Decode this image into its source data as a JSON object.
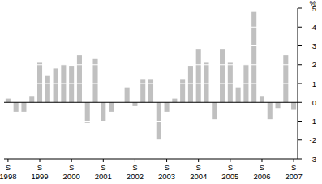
{
  "chart_data": {
    "type": "bar",
    "y_label": "%",
    "categories": [
      "S 1998",
      null,
      null,
      null,
      "S 1999",
      null,
      null,
      null,
      "S 2000",
      null,
      null,
      null,
      "S 2001",
      null,
      null,
      null,
      "S 2002",
      null,
      null,
      null,
      "S 2003",
      null,
      null,
      null,
      "S 2004",
      null,
      null,
      null,
      "S 2005",
      null,
      null,
      null,
      "S 2006",
      null,
      null,
      null,
      "S 2007"
    ],
    "values": [
      0.2,
      -0.5,
      -0.5,
      0.3,
      2.1,
      1.4,
      1.8,
      2.0,
      1.9,
      2.5,
      -1.1,
      2.3,
      -1.0,
      -0.5,
      0.0,
      0.8,
      -0.2,
      1.2,
      1.2,
      -2.0,
      -0.5,
      0.2,
      1.2,
      1.9,
      2.8,
      2.1,
      -0.9,
      2.8,
      2.1,
      0.8,
      2.0,
      4.8,
      0.3,
      -0.9,
      -0.3,
      2.5,
      -0.4
    ],
    "color": "#c0c0c0",
    "ylim": [
      -3,
      5
    ],
    "yticks": [
      -3,
      -2,
      -1,
      0,
      1,
      2,
      3,
      4,
      5
    ],
    "grid": true
  }
}
